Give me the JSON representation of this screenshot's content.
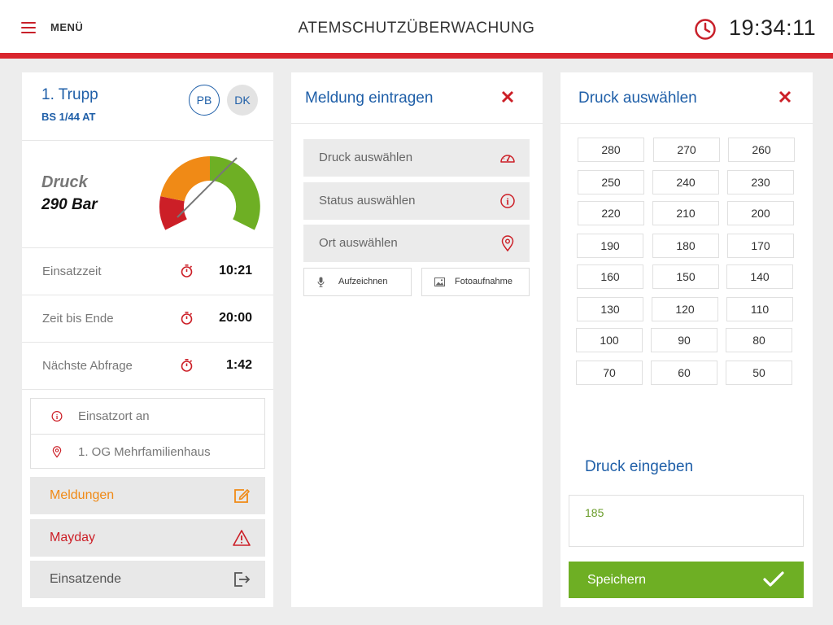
{
  "header": {
    "menu_label": "MENÜ",
    "title": "ATEMSCHUTZÜBERWACHUNG",
    "time": "19:34:11",
    "accent_color": "#d9262e"
  },
  "left": {
    "trupp_name": "1. Trupp",
    "trupp_code": "BS 1/44 AT",
    "avatars": [
      "PB",
      "DK"
    ],
    "druck_label": "Druck",
    "druck_value": "290 Bar",
    "gauge_colors": [
      "#cc1f27",
      "#f08a16",
      "#6eaf24"
    ],
    "stats": [
      {
        "label": "Einsatzzeit",
        "value": "10:21",
        "icon": "stopwatch-icon"
      },
      {
        "label": "Zeit bis Ende",
        "value": "20:00",
        "icon": "stopwatch-icon"
      },
      {
        "label": "Nächste Abfrage",
        "value": "1:42",
        "icon": "stopwatch-icon"
      }
    ],
    "info": [
      {
        "text": "Einsatzort an",
        "icon": "info-icon"
      },
      {
        "text": "1. OG Mehrfamilienhaus",
        "icon": "location-pin-icon"
      }
    ],
    "actions": [
      {
        "label": "Meldungen",
        "color": "#f08a16",
        "icon": "edit-icon"
      },
      {
        "label": "Mayday",
        "color": "#cc1f27",
        "icon": "warning-icon"
      },
      {
        "label": "Einsatzende",
        "color": "#555555",
        "icon": "exit-icon"
      }
    ]
  },
  "middle": {
    "title": "Meldung eintragen",
    "options": [
      {
        "label": "Druck auswählen",
        "icon": "gauge-icon"
      },
      {
        "label": "Status auswählen",
        "icon": "info-icon"
      },
      {
        "label": "Ort auswählen",
        "icon": "location-pin-icon"
      }
    ],
    "record_label": "Aufzeichnen",
    "photo_label": "Fotoaufnahme"
  },
  "right": {
    "title": "Druck auswählen",
    "pressures": [
      "280",
      "270",
      "260",
      "250",
      "240",
      "230",
      "220",
      "210",
      "200",
      "190",
      "180",
      "170",
      "160",
      "150",
      "140",
      "130",
      "120",
      "110",
      "100",
      "90",
      "80",
      "70",
      "60",
      "50"
    ],
    "input_title": "Druck eingeben",
    "input_value": "185",
    "save_label": "Speichern",
    "save_color": "#6eaf24"
  }
}
